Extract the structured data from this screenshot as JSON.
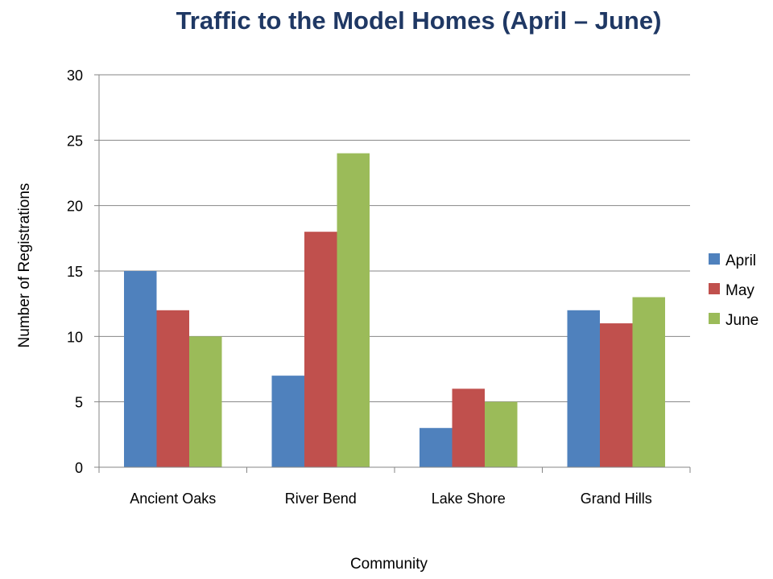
{
  "chart_data": {
    "type": "bar",
    "title": "Traffic to the Model Homes (April – June)",
    "xlabel": "Community",
    "ylabel": "Number of Registrations",
    "categories": [
      "Ancient Oaks",
      "River Bend",
      "Lake Shore",
      "Grand Hills"
    ],
    "series": [
      {
        "name": "April",
        "values": [
          15,
          7,
          3,
          12
        ],
        "color": "#4f81bd"
      },
      {
        "name": "May",
        "values": [
          12,
          18,
          6,
          11
        ],
        "color": "#c0504d"
      },
      {
        "name": "June",
        "values": [
          10,
          24,
          5,
          13
        ],
        "color": "#9bbb59"
      }
    ],
    "ylim": [
      0,
      30
    ],
    "yticks": [
      0,
      5,
      10,
      15,
      20,
      25,
      30
    ],
    "grid": true,
    "legend_position": "right"
  }
}
